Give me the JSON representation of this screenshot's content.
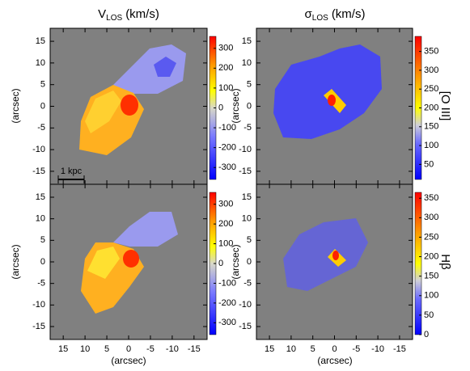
{
  "columns": [
    {
      "main": "V",
      "sub": "LOS",
      "unit": "(km/s)"
    },
    {
      "main": "σ",
      "sub": "LOS",
      "unit": "(km/s)"
    }
  ],
  "row_labels": [
    "[O III]",
    "Hβ"
  ],
  "x_label": "(arcsec)",
  "y_label": "(arcsec)",
  "scale_bar": "1 kpc",
  "xlim": [
    18,
    -18
  ],
  "xticks": [
    15,
    10,
    5,
    0,
    -5,
    -10,
    -15
  ],
  "ylim": [
    -18,
    18
  ],
  "yticks": [
    15,
    10,
    5,
    0,
    -5,
    -10,
    -15
  ],
  "colorbars": [
    {
      "lim": [
        -360,
        360
      ],
      "ticks": [
        300,
        200,
        100,
        0,
        -100,
        -200,
        -300
      ]
    },
    {
      "lim": [
        10,
        390
      ],
      "ticks": [
        350,
        300,
        250,
        200,
        150,
        100,
        50
      ]
    },
    {
      "lim": [
        -360,
        360
      ],
      "ticks": [
        300,
        200,
        100,
        0,
        -100,
        -200,
        -300
      ]
    },
    {
      "lim": [
        0,
        365
      ],
      "ticks": [
        350,
        300,
        250,
        200,
        150,
        100,
        50,
        0
      ]
    }
  ]
}
